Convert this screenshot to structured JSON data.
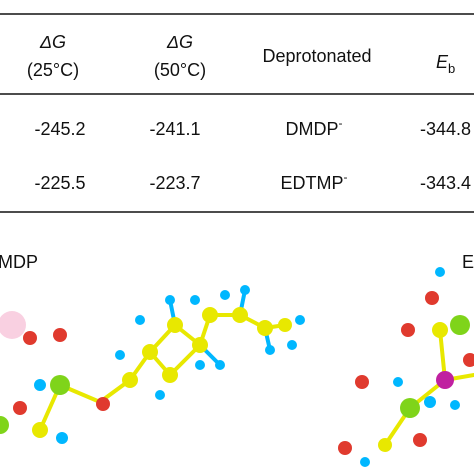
{
  "table": {
    "headers": [
      {
        "symbol": "ΔG",
        "condition": "(25°C)"
      },
      {
        "symbol": "ΔG",
        "condition": "(50°C)"
      },
      {
        "text": "Deprotonated"
      },
      {
        "symbol": "E",
        "subscript": "b"
      }
    ],
    "rows": [
      [
        "-245.2",
        "-241.1",
        {
          "name": "DMDP",
          "charge": "-"
        },
        "-344.8"
      ],
      [
        "-225.5",
        "-223.7",
        {
          "name": "EDTMP",
          "charge": "-"
        },
        "-343.4"
      ]
    ]
  },
  "panels": [
    {
      "label": "MDP"
    },
    {
      "label": "E"
    }
  ]
}
